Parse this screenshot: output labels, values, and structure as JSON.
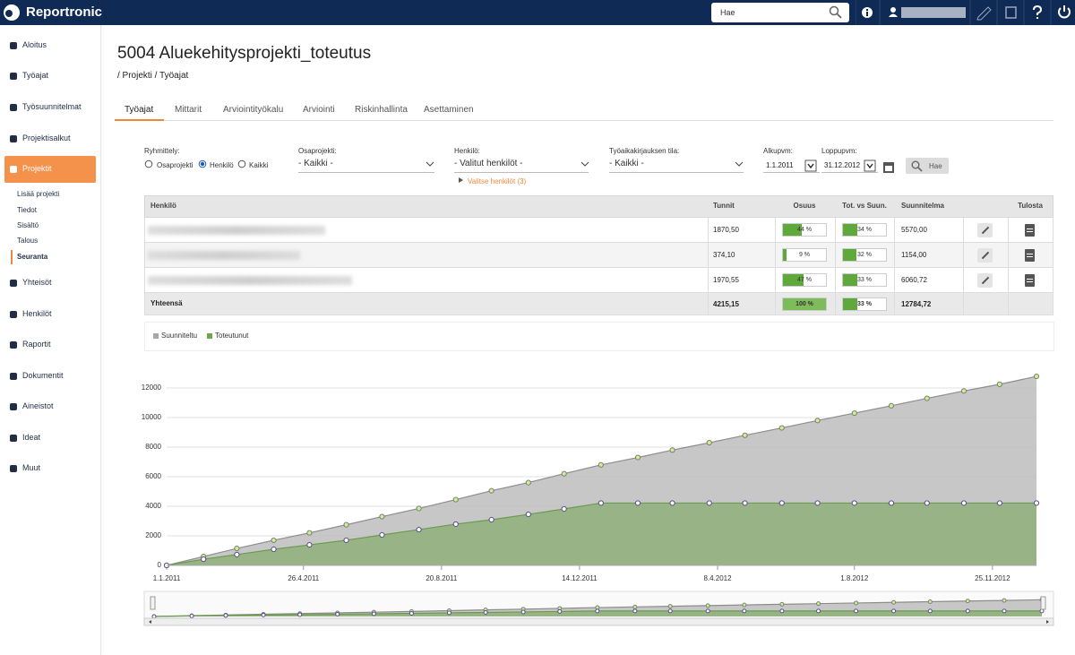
{
  "topbar": {
    "logo": "Reportronic",
    "search_placeholder": "Hae"
  },
  "sidebar": {
    "items": [
      "Aloitus",
      "Työajat",
      "Työsuunnitelmat",
      "Projektisalkut",
      "Projektit",
      "Yhteisöt",
      "Henkilöt",
      "Raportit",
      "Dokumentit",
      "Aineistot",
      "Ideat",
      "Muut"
    ],
    "subitems": [
      "Lisää projekti",
      "Tiedot",
      "Sisältö",
      "Talous",
      "Seuranta"
    ]
  },
  "page": {
    "title": "5004 Aluekehitysprojekti_toteutus",
    "breadcrumb": "/  Projekti /  Työajat",
    "tabs": [
      "Työajat",
      "Mittarit",
      "Arviointityökalu",
      "Arviointi",
      "Riskinhallinta",
      "Asettaminen"
    ]
  },
  "filters": {
    "grouping": {
      "label": "Ryhmittely:",
      "options": [
        "Osaprojekti",
        "Henkilö",
        "Kaikki"
      ]
    },
    "subproject": {
      "label": "Osaprojekti:",
      "value": "- Kaikki -"
    },
    "person": {
      "label": "Henkilö:",
      "value": "- Valitut henkilöt -",
      "link": "Valitse henkilöt (3)"
    },
    "status": {
      "label": "Työaikakirjauksen tila:",
      "value": "- Kaikki -"
    },
    "start": {
      "label": "Alkupvm:",
      "value": "1.1.2011"
    },
    "end": {
      "label": "Loppupvm:",
      "value": "31.12.2012"
    },
    "button": "Hae"
  },
  "table": {
    "headers": [
      "Henkilö",
      "Tunnit",
      "Osuus",
      "Tot. vs Suun.",
      "Suunnitelma",
      "Tulosta"
    ],
    "rows": [
      {
        "hours": "1870,50",
        "share": 44,
        "share_label": "44 %",
        "ratio": 34,
        "ratio_label": "34 %",
        "plan": "5570,00"
      },
      {
        "hours": "374,10",
        "share": 9,
        "share_label": "9 %",
        "ratio": 32,
        "ratio_label": "32 %",
        "plan": "1154,00"
      },
      {
        "hours": "1970,55",
        "share": 47,
        "share_label": "47 %",
        "ratio": 33,
        "ratio_label": "33 %",
        "plan": "6060,72"
      }
    ],
    "total": {
      "label": "Yhteensä",
      "hours": "4215,15",
      "share": 100,
      "share_label": "100 %",
      "ratio": 33,
      "ratio_label": "33 %",
      "plan": "12784,72"
    }
  },
  "chart_data": {
    "type": "area",
    "x": [
      "2011-01-01",
      "2011-02-01",
      "2011-03-01",
      "2011-04-01",
      "2011-05-01",
      "2011-06-01",
      "2011-07-01",
      "2011-08-01",
      "2011-09-01",
      "2011-10-01",
      "2011-11-01",
      "2011-12-01",
      "2012-01-01",
      "2012-02-01",
      "2012-03-01",
      "2012-04-01",
      "2012-05-01",
      "2012-06-01",
      "2012-07-01",
      "2012-08-01",
      "2012-09-01",
      "2012-10-01",
      "2012-11-01",
      "2012-12-01",
      "2013-01-01"
    ],
    "series": [
      {
        "name": "Suunniteltu",
        "color": "#bdbdbd",
        "line_color": "#8c8c8c",
        "marker_fill": "#c9f28f",
        "marker_stroke": "#7d7d7d",
        "values": [
          0,
          600,
          1150,
          1700,
          2200,
          2750,
          3300,
          3850,
          4450,
          5050,
          5600,
          6200,
          6800,
          7300,
          7800,
          8300,
          8800,
          9300,
          9800,
          10300,
          10800,
          11300,
          11800,
          12250,
          12784.72
        ]
      },
      {
        "name": "Toteutunut",
        "color": "#8fb07a",
        "line_color": "#6c9a4e",
        "marker_fill": "#ffffff",
        "marker_stroke": "#5b4d8c",
        "values": [
          0,
          420,
          730,
          1090,
          1390,
          1700,
          2060,
          2420,
          2790,
          3090,
          3450,
          3820,
          4215.15,
          4215.15,
          4215.15,
          4215.15,
          4215.15,
          4215.15,
          4215.15,
          4215.15,
          4215.15,
          4215.15,
          4215.15,
          4215.15,
          4215.15
        ]
      }
    ],
    "xlim": [
      "2011-01-01",
      "2013-01-01"
    ],
    "xticks": [
      {
        "value": "2011-01-01",
        "label": "1.1.2011"
      },
      {
        "value": "2011-04-26",
        "label": "26.4.2011"
      },
      {
        "value": "2011-08-20",
        "label": "20.8.2011"
      },
      {
        "value": "2011-12-14",
        "label": "14.12.2011"
      },
      {
        "value": "2012-04-08",
        "label": "8.4.2012"
      },
      {
        "value": "2012-08-01",
        "label": "1.8.2012"
      },
      {
        "value": "2012-11-25",
        "label": "25.11.2012"
      }
    ],
    "ylim": [
      0,
      13000
    ],
    "yticks": [
      0,
      2000,
      4000,
      6000,
      8000,
      10000,
      12000
    ],
    "grid": true
  }
}
